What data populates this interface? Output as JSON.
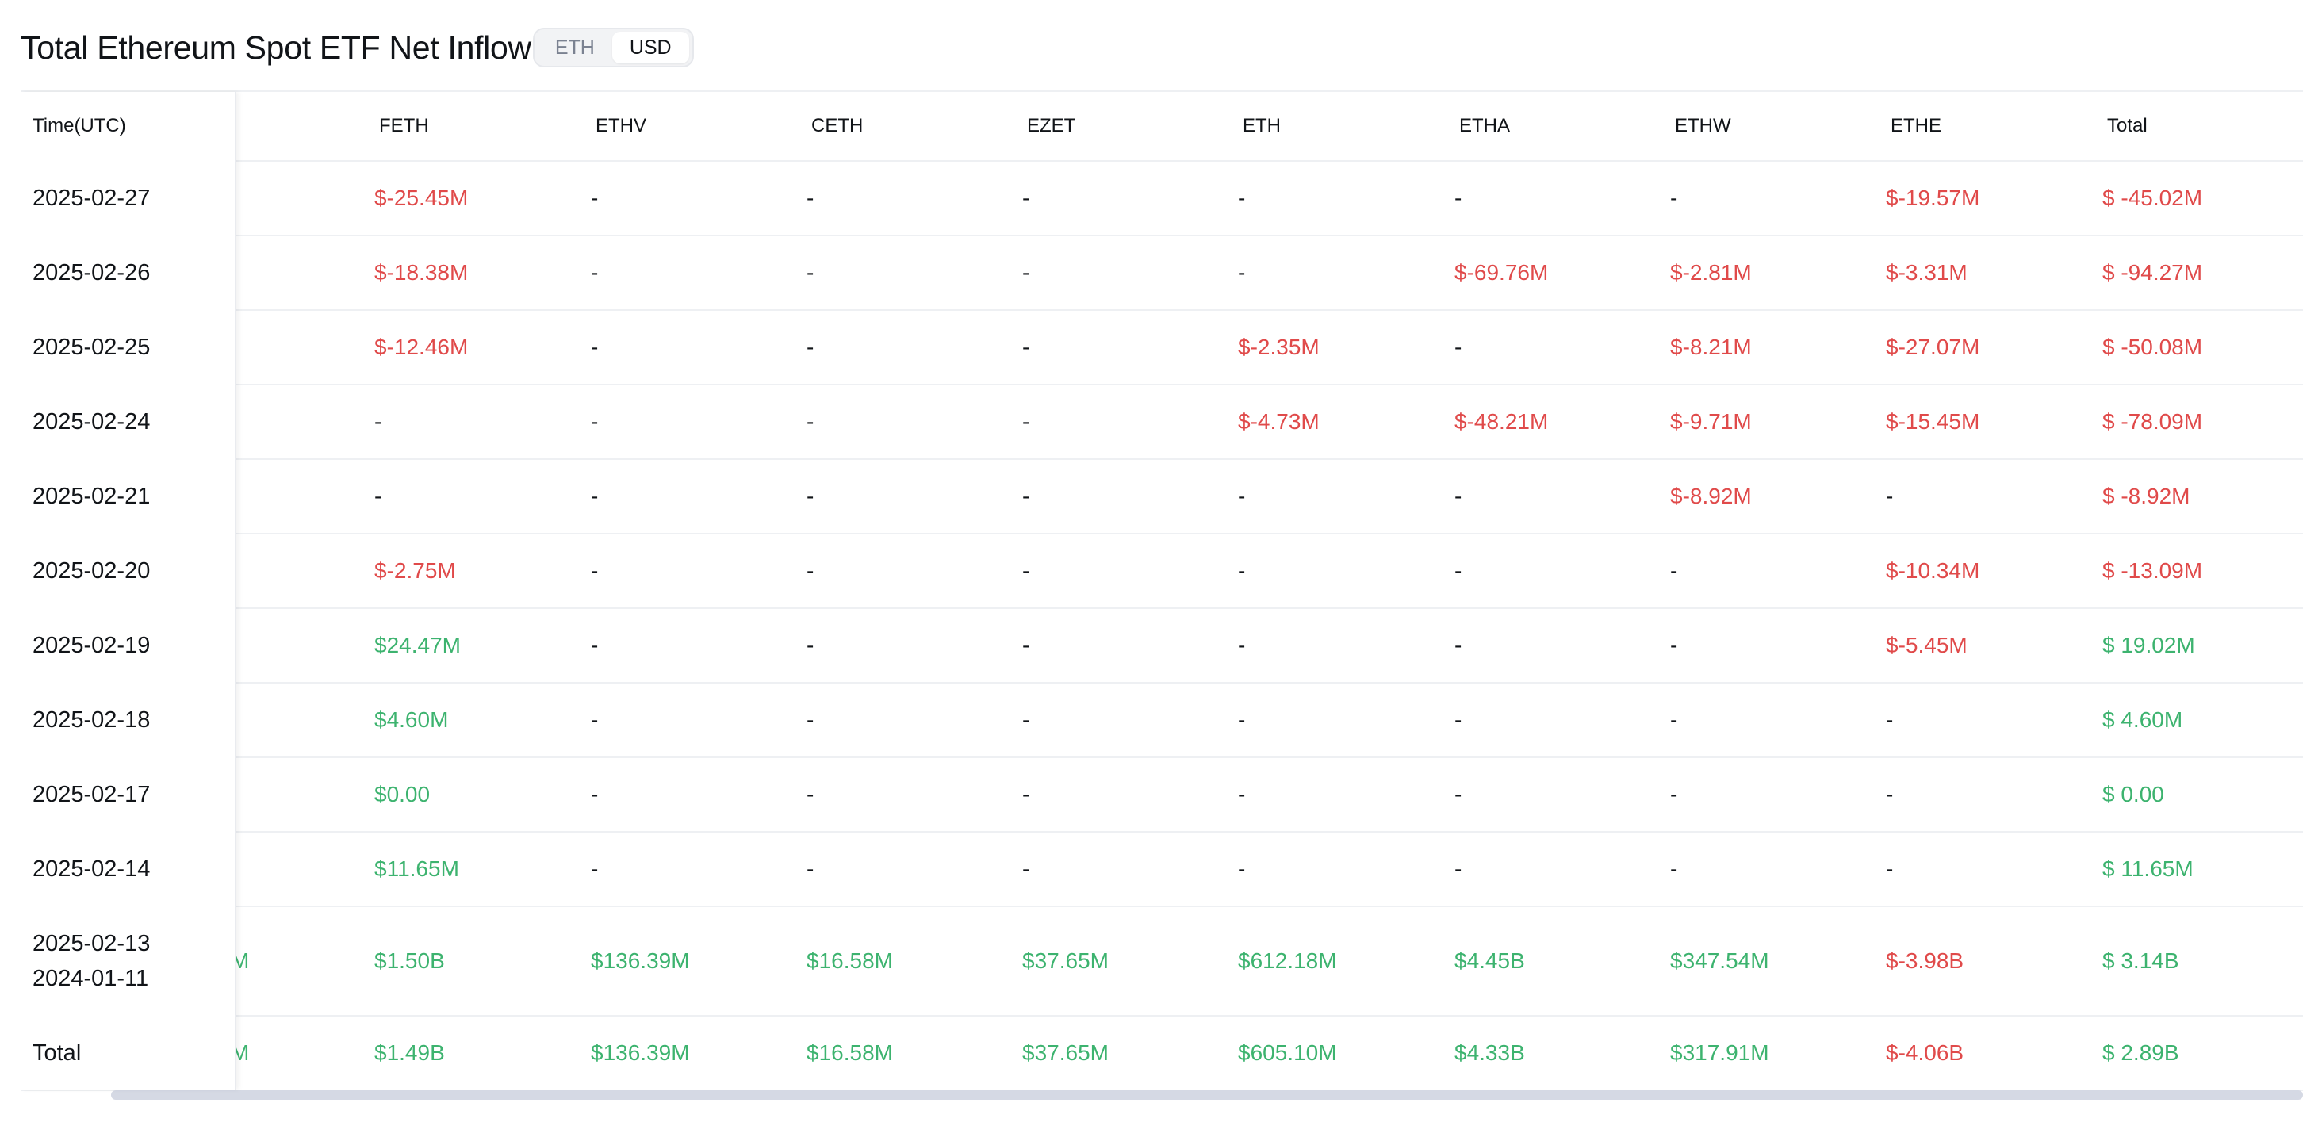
{
  "header": {
    "title": "Total Ethereum Spot ETF Net Inflow",
    "unit_toggle": [
      "ETH",
      "USD"
    ],
    "active_unit": "USD"
  },
  "table": {
    "columns": [
      "Time(UTC)",
      "FETH",
      "ETHV",
      "CETH",
      "EZET",
      "ETH",
      "ETHA",
      "ETHW",
      "ETHE",
      "Total"
    ],
    "rows": [
      {
        "date": [
          "2025-02-27"
        ],
        "clipped": "",
        "values": [
          "$-25.45M",
          "-",
          "-",
          "-",
          "-",
          "-",
          "-",
          "$-19.57M",
          "$ -45.02M"
        ]
      },
      {
        "date": [
          "2025-02-26"
        ],
        "clipped": "",
        "values": [
          "$-18.38M",
          "-",
          "-",
          "-",
          "-",
          "$-69.76M",
          "$-2.81M",
          "$-3.31M",
          "$ -94.27M"
        ]
      },
      {
        "date": [
          "2025-02-25"
        ],
        "clipped": "",
        "values": [
          "$-12.46M",
          "-",
          "-",
          "-",
          "$-2.35M",
          "-",
          "$-8.21M",
          "$-27.07M",
          "$ -50.08M"
        ]
      },
      {
        "date": [
          "2025-02-24"
        ],
        "clipped": "",
        "values": [
          "-",
          "-",
          "-",
          "-",
          "$-4.73M",
          "$-48.21M",
          "$-9.71M",
          "$-15.45M",
          "$ -78.09M"
        ]
      },
      {
        "date": [
          "2025-02-21"
        ],
        "clipped": "",
        "values": [
          "-",
          "-",
          "-",
          "-",
          "-",
          "-",
          "$-8.92M",
          "-",
          "$ -8.92M"
        ]
      },
      {
        "date": [
          "2025-02-20"
        ],
        "clipped": "",
        "values": [
          "$-2.75M",
          "-",
          "-",
          "-",
          "-",
          "-",
          "-",
          "$-10.34M",
          "$ -13.09M"
        ]
      },
      {
        "date": [
          "2025-02-19"
        ],
        "clipped": "",
        "values": [
          "$24.47M",
          "-",
          "-",
          "-",
          "-",
          "-",
          "-",
          "$-5.45M",
          "$ 19.02M"
        ]
      },
      {
        "date": [
          "2025-02-18"
        ],
        "clipped": "",
        "values": [
          "$4.60M",
          "-",
          "-",
          "-",
          "-",
          "-",
          "-",
          "-",
          "$ 4.60M"
        ]
      },
      {
        "date": [
          "2025-02-17"
        ],
        "clipped": "",
        "values": [
          "$0.00",
          "-",
          "-",
          "-",
          "-",
          "-",
          "-",
          "-",
          "$ 0.00"
        ]
      },
      {
        "date": [
          "2025-02-14"
        ],
        "clipped": "",
        "values": [
          "$11.65M",
          "-",
          "-",
          "-",
          "-",
          "-",
          "-",
          "-",
          "$ 11.65M"
        ]
      },
      {
        "date": [
          "2025-02-13",
          "2024-01-11"
        ],
        "clipped": "M",
        "values": [
          "$1.50B",
          "$136.39M",
          "$16.58M",
          "$37.65M",
          "$612.18M",
          "$4.45B",
          "$347.54M",
          "$-3.98B",
          "$ 3.14B"
        ]
      },
      {
        "date": [
          "Total"
        ],
        "clipped": "M",
        "values": [
          "$1.49B",
          "$136.39M",
          "$16.58M",
          "$37.65M",
          "$605.10M",
          "$4.33B",
          "$317.91M",
          "$-4.06B",
          "$ 2.89B"
        ]
      }
    ]
  },
  "colors": {
    "negative": "#e04a4a",
    "positive": "#3db36f",
    "neutral": "#111418"
  }
}
